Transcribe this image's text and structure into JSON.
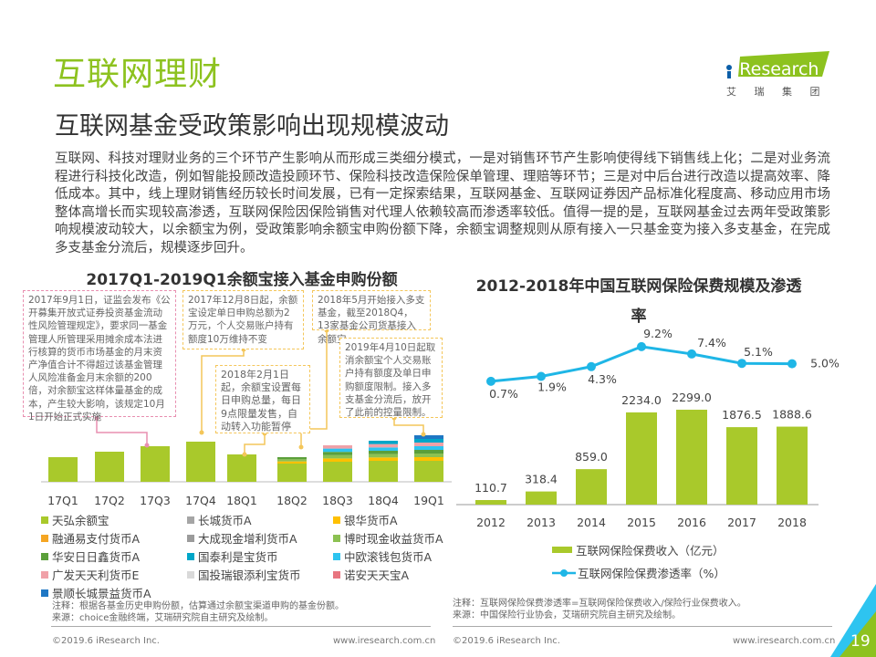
{
  "header": {
    "title": "互联网理财",
    "subtitle": "互联网基金受政策影响出现规模波动",
    "logo_text": "iResearch",
    "logo_sub": "艾 瑞 集 团"
  },
  "paragraph": "互联网、科技对理财业务的三个环节产生影响从而形成三类细分模式，一是对销售环节产生影响使得线下销售线上化；二是对业务流程进行科技化改造，例如智能投顾改造投顾环节、保险科技改造保险保单管理、理赔等环节；三是对中后台进行改造以提高效率、降低成本。其中，线上理财销售经历较长时间发展，已有一定探索结果，互联网基金、互联网证券因产品标准化程度高、移动应用市场整体高增长而实现较高渗透，互联网保险因保险销售对代理人依赖较高而渗透率较低。值得一提的是，互联网基金过去两年受政策影响规模波动较大，以余额宝为例，受政策影响余额宝申购份额下降，余额宝调整规则从原有接入一只基金变为接入多支基金，在完成多支基金分流后，规模逐步回升。",
  "left_chart": {
    "annotations": [
      "2017年9月1日，证监会发布《公开募集开放式证券投资基金流动性风险管理规定》，要求同一基金管理人所管理采用摊余成本法进行核算的货币市场基金的月末资产净值合计不得超过该基金管理人风险准备金月末余额的200倍，对余额宝这样体量基金的成本，产生较大影响，该规定10月1日开始正式实施",
      "2017年12月8日起，余额宝设定单日申购总额为2万元，个人交易账户持有额度10万维持不变",
      "2018年5月开始接入多支基金，截至2018Q4，13家基金公司货基接入余额宝",
      "2018年2月1日起，余额宝设置每日申购总量，每日9点限量发售，自动转入功能暂停",
      "2019年4月10日起取消余额宝个人交易账户持有额度及单日申购额度限制。接入多支基金分流后，放开了此前的控量限制。"
    ],
    "note": "注释：根据各基金历史申购份额，估算通过余额宝渠道申购的基金份额。",
    "source": "来源：choice金融终端，艾瑞研究院自主研究及绘制。"
  },
  "right_chart": {
    "legend_bar": "互联网保险保费收入（亿元）",
    "legend_line": "互联网保险保费渗透率（%）",
    "note": "注释：互联网保险保费渗透率=互联网保险保费收入/保险行业保费收入。",
    "source": "来源：中国保险行业协会，艾瑞研究院自主研究及绘制。"
  },
  "footer": {
    "copyright": "©2019.6 iResearch Inc.",
    "url": "www.iresearch.com.cn",
    "page": "19"
  },
  "colors": {
    "accent": "#8dc21f",
    "line": "#1fb6e6",
    "blue": "#0070c0"
  },
  "chart_data": [
    {
      "type": "bar",
      "title": "2017Q1-2019Q1余额宝接入基金申购份额",
      "stacked": true,
      "grid": false,
      "y_axis": "none",
      "categories": [
        "17Q1",
        "17Q2",
        "17Q3",
        "17Q4",
        "18Q1",
        "18Q2",
        "18Q3",
        "18Q4",
        "19Q1"
      ],
      "legend": [
        "天弘余额宝",
        "长城货币A",
        "银华货币A",
        "融通易支付货币A",
        "大成现金增利货币A",
        "博时现金收益货币A",
        "华安日日鑫货币A",
        "国泰利是宝货币",
        "中欧滚钱包货币A",
        "广发天天利货币E",
        "国投瑞银添利宝货币",
        "诺安天天宝A",
        "景顺长城景益货币A"
      ],
      "legend_colors": [
        "#a9c92b",
        "#a5a5a5",
        "#ffc000",
        "#f5a623",
        "#9b9b9b",
        "#8cc152",
        "#5b9f3a",
        "#00a6c8",
        "#2ec4f0",
        "#f0a1a8",
        "#d9d9d9",
        "#e87580",
        "#1f77c4"
      ],
      "relative_values_note": "",
      "series": [
        {
          "name": "天弘余额宝",
          "values": [
            27,
            33,
            39,
            44,
            30,
            20,
            22,
            23,
            23
          ]
        },
        {
          "name": "other",
          "values": [
            0,
            0,
            0,
            0,
            0,
            7,
            18,
            22,
            28
          ]
        }
      ]
    },
    {
      "type": "bar+line",
      "title": "2012-2018年中国互联网保险保费规模及渗透率",
      "grid": false,
      "categories": [
        "2012",
        "2013",
        "2014",
        "2015",
        "2016",
        "2017",
        "2018"
      ],
      "series": [
        {
          "name": "互联网保险保费收入（亿元）",
          "type": "bar",
          "values": [
            110.7,
            318.4,
            859.0,
            2234.0,
            2299.0,
            1876.5,
            1888.6
          ],
          "labels": [
            "110.7",
            "318.4",
            "859.0",
            "2234.0",
            "2299.0",
            "1876.5",
            "1888.6"
          ]
        },
        {
          "name": "互联网保险保费渗透率（%）",
          "type": "line",
          "values": [
            0.7,
            1.9,
            4.3,
            9.2,
            7.4,
            5.1,
            5.0
          ],
          "labels": [
            "0.7%",
            "1.9%",
            "4.3%",
            "9.2%",
            "7.4%",
            "5.1%",
            "5.0%"
          ]
        }
      ]
    }
  ]
}
